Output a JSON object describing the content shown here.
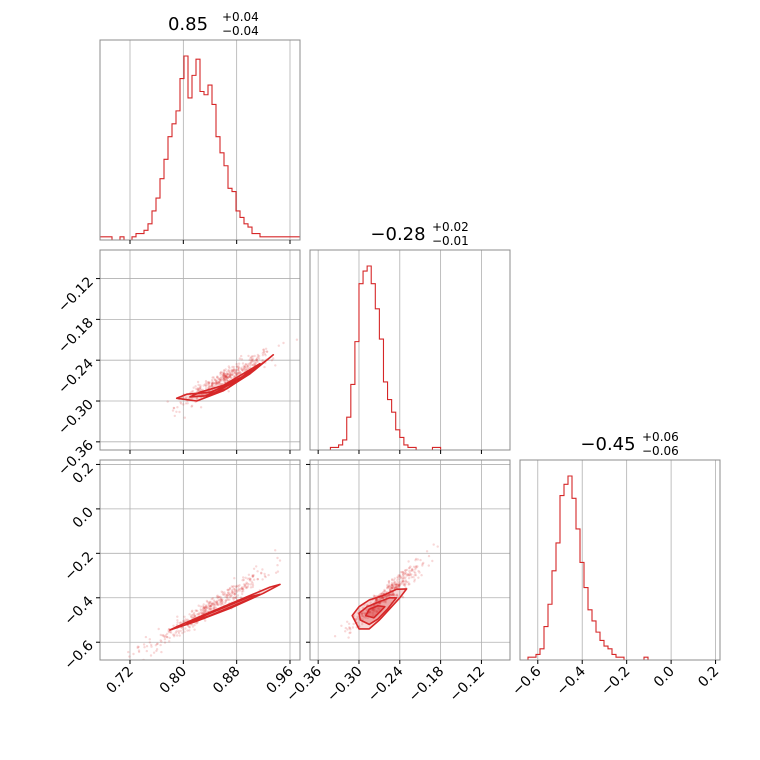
{
  "chart_data": {
    "type": "corner",
    "color": "#d62728",
    "grid": true,
    "parameters": [
      {
        "id": "p0",
        "range": [
          0.675,
          0.975
        ],
        "ticks": [
          0.72,
          0.8,
          0.88,
          0.96
        ],
        "tick_labels": [
          "0.72",
          "0.80",
          "0.88",
          "0.96"
        ],
        "title": {
          "value": "0.85",
          "plus": "+0.04",
          "minus": "−0.04"
        }
      },
      {
        "id": "p1",
        "range": [
          -0.372,
          -0.078
        ],
        "ticks": [
          -0.36,
          -0.3,
          -0.24,
          -0.18,
          -0.12
        ],
        "tick_labels": [
          "−0.36",
          "−0.30",
          "−0.24",
          "−0.18",
          "−0.12"
        ],
        "title": {
          "value": "−0.28",
          "plus": "+0.02",
          "minus": "−0.01"
        }
      },
      {
        "id": "p2",
        "range": [
          -0.68,
          0.22
        ],
        "ticks": [
          -0.6,
          -0.4,
          -0.2,
          0.0,
          0.2
        ],
        "tick_labels": [
          "−0.6",
          "−0.4",
          "−0.2",
          "0.0",
          "0.2"
        ],
        "title": {
          "value": "−0.45",
          "plus": "+0.06",
          "minus": "−0.06"
        }
      }
    ],
    "histograms": [
      {
        "param": 0,
        "edges_start": 0.675,
        "bin_width": 0.006,
        "counts": [
          1,
          1,
          1,
          0,
          0,
          1,
          0,
          0,
          1,
          2,
          2,
          3,
          5,
          9,
          13,
          19,
          25,
          32,
          36,
          40,
          50,
          57,
          44,
          51,
          56,
          46,
          45,
          48,
          42,
          32,
          27,
          23,
          16,
          15,
          9,
          7,
          5,
          4,
          2,
          2,
          1,
          1,
          1,
          1,
          1,
          1,
          1,
          1,
          1,
          1
        ]
      },
      {
        "param": 1,
        "edges_start": -0.372,
        "bin_width": 0.006,
        "counts": [
          0,
          0,
          0,
          0,
          0,
          1,
          1,
          2,
          4,
          13,
          26,
          43,
          66,
          71,
          73,
          66,
          56,
          44,
          27,
          20,
          15,
          8,
          5,
          2,
          1,
          1,
          0,
          0,
          0,
          0,
          1,
          1,
          0,
          0,
          0,
          0,
          0,
          0,
          0,
          0,
          0,
          0,
          0,
          0,
          0,
          0,
          0,
          0,
          0
        ]
      },
      {
        "param": 2,
        "edges_start": -0.68,
        "bin_width": 0.018,
        "counts": [
          0,
          0,
          1,
          1,
          2,
          4,
          12,
          20,
          32,
          42,
          59,
          63,
          66,
          58,
          47,
          35,
          26,
          18,
          14,
          10,
          7,
          5,
          4,
          2,
          1,
          1,
          0,
          0,
          0,
          0,
          0,
          1,
          0,
          0,
          0,
          0,
          0,
          0,
          0,
          0,
          0,
          0,
          0,
          0,
          0,
          0,
          0,
          0,
          0,
          0
        ]
      }
    ],
    "scatter_2d": [
      {
        "x_param": 0,
        "y_param": 1,
        "center": [
          0.853,
          -0.28
        ],
        "trend": [
          0.8,
          -0.3,
          0.95,
          -0.22
        ],
        "contours": [
          [
            [
              0.79,
              -0.296
            ],
            [
              0.82,
              -0.3
            ],
            [
              0.86,
              -0.285
            ],
            [
              0.9,
              -0.26
            ],
            [
              0.935,
              -0.232
            ],
            [
              0.925,
              -0.24
            ],
            [
              0.88,
              -0.272
            ],
            [
              0.84,
              -0.287
            ],
            [
              0.805,
              -0.29
            ],
            [
              0.79,
              -0.296
            ]
          ],
          [
            [
              0.81,
              -0.294
            ],
            [
              0.84,
              -0.292
            ],
            [
              0.88,
              -0.27
            ],
            [
              0.915,
              -0.245
            ],
            [
              0.9,
              -0.254
            ],
            [
              0.86,
              -0.277
            ],
            [
              0.825,
              -0.287
            ],
            [
              0.81,
              -0.294
            ]
          ],
          [
            [
              0.835,
              -0.292
            ],
            [
              0.865,
              -0.282
            ],
            [
              0.895,
              -0.262
            ],
            [
              0.88,
              -0.268
            ],
            [
              0.85,
              -0.283
            ],
            [
              0.835,
              -0.292
            ]
          ]
        ]
      },
      {
        "x_param": 0,
        "y_param": 2,
        "center": [
          0.853,
          -0.45
        ],
        "trend": [
          0.75,
          -0.62,
          0.965,
          -0.2
        ],
        "contours": [
          [
            [
              0.78,
              -0.545
            ],
            [
              0.82,
              -0.505
            ],
            [
              0.87,
              -0.448
            ],
            [
              0.92,
              -0.38
            ],
            [
              0.945,
              -0.34
            ],
            [
              0.93,
              -0.352
            ],
            [
              0.88,
              -0.415
            ],
            [
              0.83,
              -0.478
            ],
            [
              0.79,
              -0.53
            ],
            [
              0.78,
              -0.545
            ]
          ],
          [
            [
              0.805,
              -0.515
            ],
            [
              0.84,
              -0.48
            ],
            [
              0.88,
              -0.43
            ],
            [
              0.915,
              -0.385
            ],
            [
              0.9,
              -0.395
            ],
            [
              0.86,
              -0.445
            ],
            [
              0.82,
              -0.495
            ],
            [
              0.805,
              -0.515
            ]
          ]
        ]
      },
      {
        "x_param": 1,
        "y_param": 2,
        "center": [
          -0.28,
          -0.45
        ],
        "trend": [
          -0.31,
          -0.52,
          -0.19,
          -0.2
        ],
        "contours": [
          [
            [
              -0.305,
              -0.51
            ],
            [
              -0.3,
              -0.54
            ],
            [
              -0.285,
              -0.54
            ],
            [
              -0.27,
              -0.5
            ],
            [
              -0.255,
              -0.45
            ],
            [
              -0.24,
              -0.4
            ],
            [
              -0.23,
              -0.36
            ],
            [
              -0.245,
              -0.362
            ],
            [
              -0.265,
              -0.39
            ],
            [
              -0.285,
              -0.41
            ],
            [
              -0.3,
              -0.44
            ],
            [
              -0.31,
              -0.48
            ],
            [
              -0.305,
              -0.51
            ]
          ],
          [
            [
              -0.298,
              -0.5
            ],
            [
              -0.285,
              -0.52
            ],
            [
              -0.272,
              -0.495
            ],
            [
              -0.258,
              -0.45
            ],
            [
              -0.245,
              -0.4
            ],
            [
              -0.255,
              -0.4
            ],
            [
              -0.272,
              -0.42
            ],
            [
              -0.288,
              -0.44
            ],
            [
              -0.3,
              -0.47
            ],
            [
              -0.298,
              -0.5
            ]
          ],
          [
            [
              -0.29,
              -0.48
            ],
            [
              -0.278,
              -0.49
            ],
            [
              -0.268,
              -0.46
            ],
            [
              -0.262,
              -0.44
            ],
            [
              -0.272,
              -0.436
            ],
            [
              -0.285,
              -0.452
            ],
            [
              -0.29,
              -0.48
            ]
          ]
        ]
      }
    ]
  }
}
